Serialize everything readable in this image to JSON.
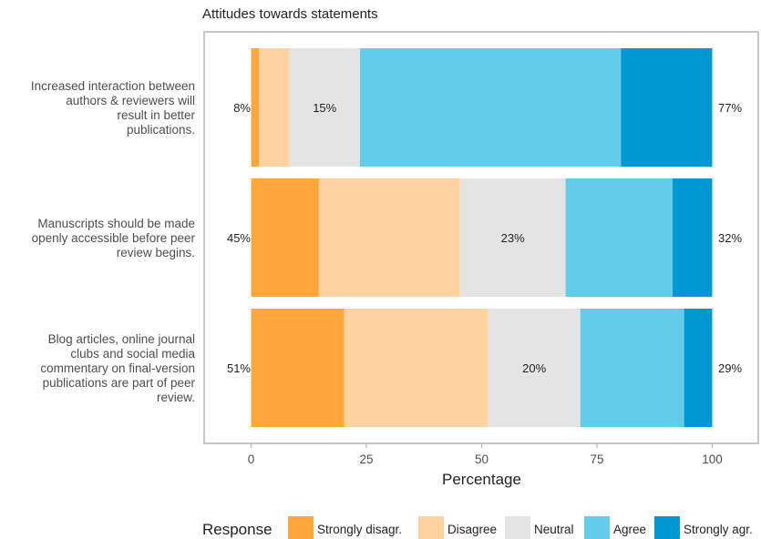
{
  "chart_data": {
    "type": "bar",
    "orientation": "horizontal",
    "stacked": true,
    "title": "Attitudes towards statements",
    "xlabel": "Percentage",
    "ylabel": "",
    "xlim": [
      0,
      100
    ],
    "xticks": [
      "0",
      "25",
      "50",
      "75",
      "100"
    ],
    "grid": false,
    "legend": {
      "title": "Response",
      "position": "bottom"
    },
    "categories": [
      "Increased interaction between authors & reviewers will result in better publications.",
      "Manuscripts should be made openly accessible before peer review begins.",
      "Blog articles, online journal clubs and social media commentary on final-version publications are part of peer review."
    ],
    "category_lines": [
      [
        "Increased interaction between",
        "authors & reviewers will",
        "result in better",
        "publications."
      ],
      [
        "Manuscripts should be made",
        "openly accessible before peer",
        "review begins."
      ],
      [
        "Blog articles, online journal",
        "clubs and social media",
        "commentary on final-version",
        "publications are part of peer",
        "review."
      ]
    ],
    "series": [
      {
        "name": "Strongly disagr.",
        "color": "#FFA73B",
        "values": [
          1.7,
          14.7,
          20.2
        ]
      },
      {
        "name": "Disagree",
        "color": "#FFD39F",
        "values": [
          6.6,
          30.6,
          31.2
        ]
      },
      {
        "name": "Neutral",
        "color": "#E4E4E4",
        "values": [
          15.3,
          22.9,
          20.0
        ]
      },
      {
        "name": "Agree",
        "color": "#63CCEA",
        "values": [
          56.6,
          23.2,
          22.5
        ]
      },
      {
        "name": "Strongly agr.",
        "color": "#0098D3",
        "values": [
          19.8,
          8.6,
          6.1
        ]
      }
    ],
    "labels_left": [
      "8%",
      "45%",
      "51%"
    ],
    "labels_center": [
      "15%",
      "23%",
      "20%"
    ],
    "labels_right": [
      "77%",
      "32%",
      "29%"
    ]
  }
}
